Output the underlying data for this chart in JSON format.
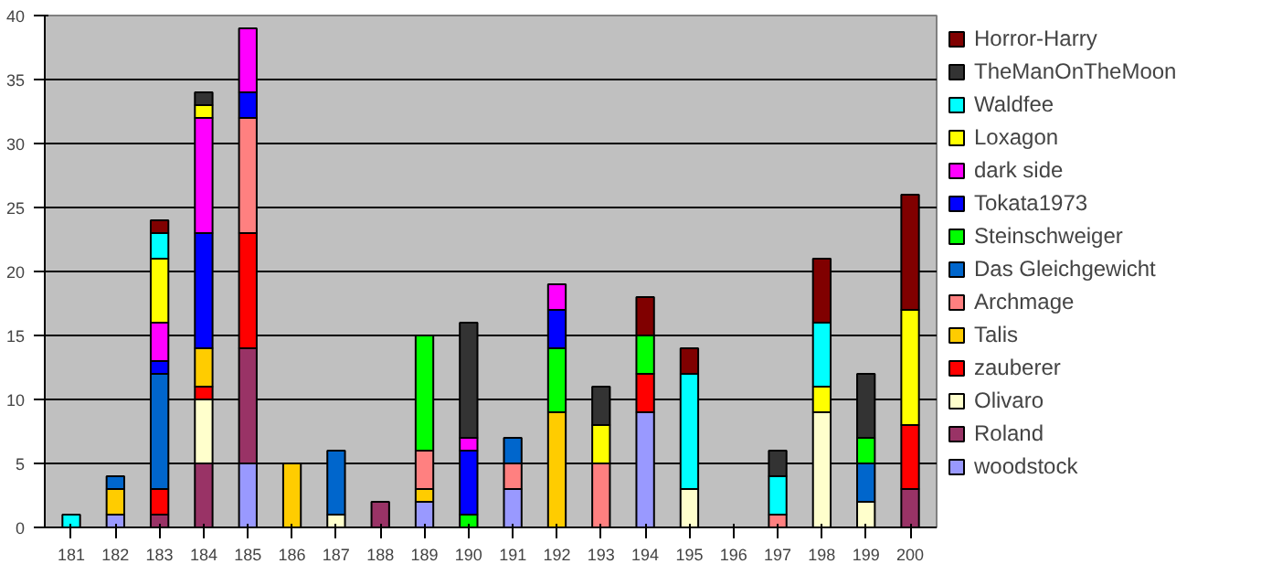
{
  "chart_data": {
    "type": "bar",
    "stacked": true,
    "categories": [
      "181",
      "182",
      "183",
      "184",
      "185",
      "186",
      "187",
      "188",
      "189",
      "190",
      "191",
      "192",
      "193",
      "194",
      "195",
      "196",
      "197",
      "198",
      "199",
      "200"
    ],
    "ylim": [
      0,
      40
    ],
    "yticks": [
      0,
      5,
      10,
      15,
      20,
      25,
      30,
      35,
      40
    ],
    "grid": "y",
    "legend": "right",
    "series": [
      {
        "name": "woodstock",
        "color": "#9999ff",
        "values": [
          null,
          1,
          null,
          null,
          5,
          null,
          null,
          null,
          2,
          null,
          3,
          null,
          null,
          9,
          null,
          null,
          null,
          null,
          null,
          null
        ]
      },
      {
        "name": "Roland",
        "color": "#993366",
        "values": [
          null,
          null,
          1,
          5,
          9,
          null,
          null,
          2,
          null,
          null,
          null,
          null,
          null,
          null,
          null,
          null,
          null,
          null,
          null,
          3
        ]
      },
      {
        "name": "Olivaro",
        "color": "#ffffcc",
        "values": [
          null,
          null,
          null,
          5,
          null,
          null,
          1,
          null,
          null,
          null,
          null,
          null,
          null,
          null,
          3,
          null,
          null,
          9,
          2,
          null
        ]
      },
      {
        "name": "zauberer",
        "color": "#ff0000",
        "values": [
          null,
          null,
          2,
          1,
          9,
          null,
          null,
          null,
          null,
          null,
          null,
          null,
          null,
          3,
          null,
          null,
          null,
          null,
          null,
          5
        ]
      },
      {
        "name": "Talis",
        "color": "#ffcc00",
        "values": [
          null,
          2,
          null,
          3,
          null,
          5,
          null,
          null,
          1,
          null,
          null,
          9,
          null,
          null,
          null,
          null,
          null,
          null,
          null,
          null
        ]
      },
      {
        "name": "Archmage",
        "color": "#ff8080",
        "values": [
          null,
          null,
          null,
          null,
          9,
          null,
          null,
          null,
          3,
          null,
          2,
          null,
          5,
          null,
          null,
          null,
          1,
          null,
          null,
          null
        ]
      },
      {
        "name": "Das Gleichgewicht",
        "color": "#0066cc",
        "values": [
          null,
          1,
          9,
          null,
          null,
          null,
          5,
          null,
          null,
          null,
          2,
          null,
          null,
          null,
          null,
          null,
          null,
          null,
          3,
          null
        ]
      },
      {
        "name": "Steinschweiger",
        "color": "#00ff00",
        "values": [
          null,
          null,
          null,
          null,
          null,
          null,
          null,
          null,
          9,
          1,
          null,
          5,
          null,
          3,
          null,
          null,
          null,
          null,
          2,
          null
        ]
      },
      {
        "name": "Tokata1973",
        "color": "#0000ff",
        "values": [
          null,
          null,
          1,
          9,
          2,
          null,
          null,
          null,
          null,
          5,
          null,
          3,
          null,
          null,
          null,
          null,
          null,
          null,
          null,
          null
        ]
      },
      {
        "name": "dark side",
        "color": "#ff00ff",
        "values": [
          null,
          null,
          3,
          9,
          5,
          null,
          null,
          null,
          null,
          1,
          null,
          2,
          null,
          null,
          null,
          null,
          null,
          null,
          null,
          null
        ]
      },
      {
        "name": "Loxagon",
        "color": "#ffff00",
        "values": [
          null,
          null,
          5,
          1,
          null,
          null,
          null,
          null,
          null,
          null,
          null,
          null,
          3,
          null,
          null,
          null,
          null,
          2,
          null,
          9
        ]
      },
      {
        "name": "Waldfee",
        "color": "#00ffff",
        "values": [
          1,
          null,
          2,
          null,
          null,
          null,
          null,
          null,
          null,
          null,
          null,
          null,
          null,
          null,
          9,
          null,
          3,
          5,
          null,
          null
        ]
      },
      {
        "name": "TheManOnTheMoon",
        "color": "#333333",
        "values": [
          null,
          null,
          null,
          1,
          null,
          null,
          null,
          null,
          null,
          9,
          null,
          null,
          3,
          null,
          null,
          null,
          2,
          null,
          5,
          null
        ]
      },
      {
        "name": "Horror-Harry",
        "color": "#800000",
        "values": [
          null,
          null,
          1,
          null,
          null,
          null,
          null,
          null,
          null,
          null,
          null,
          null,
          null,
          3,
          2,
          null,
          null,
          5,
          null,
          9
        ]
      }
    ]
  }
}
